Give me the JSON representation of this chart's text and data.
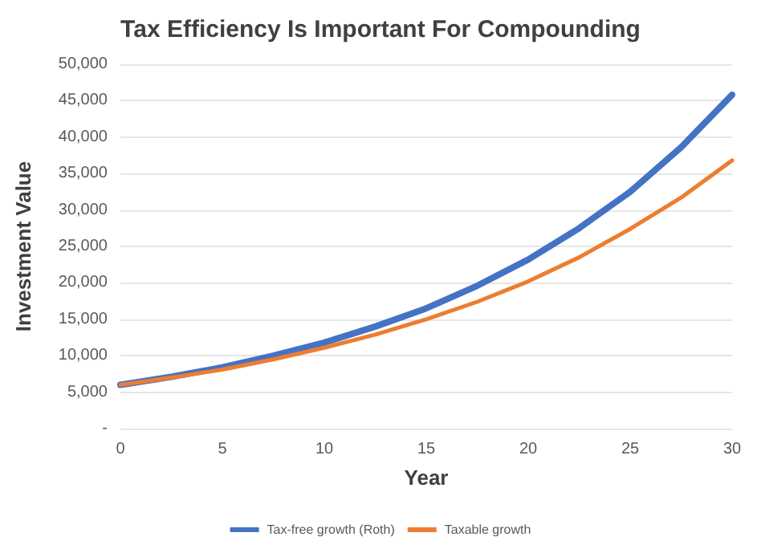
{
  "chart_data": {
    "type": "line",
    "title": "Tax Efficiency Is Important For Compounding",
    "xlabel": "Year",
    "ylabel": "Investment Value",
    "x": [
      0,
      2.5,
      5,
      7.5,
      10,
      12.5,
      15,
      17.5,
      20,
      22.5,
      25,
      27.5,
      30
    ],
    "series": [
      {
        "name": "Tax-free growth (Roth)",
        "color": "#4472c4",
        "values": [
          6000,
          7100,
          8400,
          10000,
          11800,
          14000,
          16500,
          19600,
          23200,
          27500,
          32500,
          38600,
          45800
        ]
      },
      {
        "name": "Taxable growth",
        "color": "#ed7d31",
        "values": [
          6000,
          7000,
          8100,
          9500,
          11100,
          12900,
          15000,
          17400,
          20200,
          23500,
          27400,
          31700,
          36800
        ]
      }
    ],
    "xlim": [
      0,
      30
    ],
    "xticks": [
      0,
      5,
      10,
      15,
      20,
      25,
      30
    ],
    "ylim": [
      0,
      50000
    ],
    "yticks": [
      {
        "value": 0,
        "label": "-"
      },
      {
        "value": 5000,
        "label": "5,000"
      },
      {
        "value": 10000,
        "label": "10,000"
      },
      {
        "value": 15000,
        "label": "15,000"
      },
      {
        "value": 20000,
        "label": "20,000"
      },
      {
        "value": 25000,
        "label": "25,000"
      },
      {
        "value": 30000,
        "label": "30,000"
      },
      {
        "value": 35000,
        "label": "35,000"
      },
      {
        "value": 40000,
        "label": "40,000"
      },
      {
        "value": 45000,
        "label": "45,000"
      },
      {
        "value": 50000,
        "label": "50,000"
      }
    ],
    "grid": "y",
    "legend": "bottom",
    "marker": "none",
    "line_style": "solid"
  }
}
